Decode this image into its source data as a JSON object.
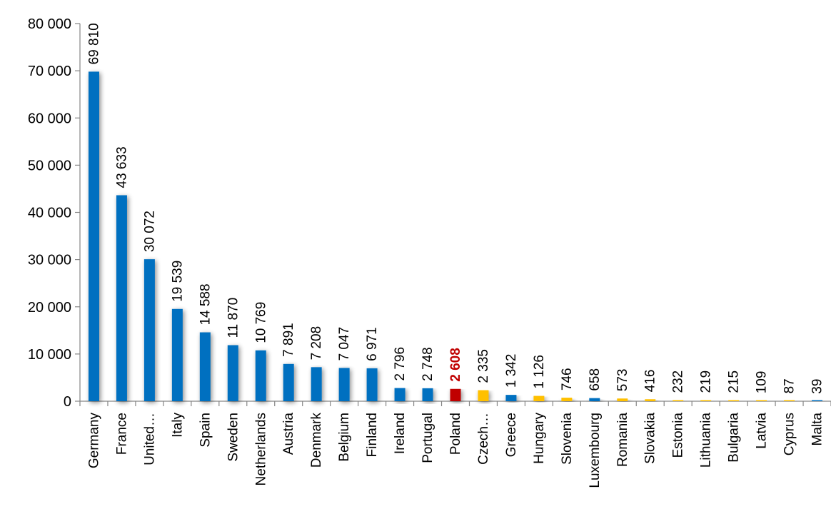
{
  "chart_data": {
    "type": "bar",
    "title": "",
    "xlabel": "",
    "ylabel": "",
    "ylim": [
      0,
      80000
    ],
    "yticks": [
      0,
      10000,
      20000,
      30000,
      40000,
      50000,
      60000,
      70000,
      80000
    ],
    "ytick_labels": [
      "0",
      "10 000",
      "20 000",
      "30 000",
      "40 000",
      "50 000",
      "60 000",
      "70 000",
      "80 000"
    ],
    "grid": false,
    "categories": [
      "Germany",
      "France",
      "United…",
      "Italy",
      "Spain",
      "Sweden",
      "Netherlands",
      "Austria",
      "Denmark",
      "Belgium",
      "Finland",
      "Ireland",
      "Portugal",
      "Poland",
      "Czech…",
      "Greece",
      "Hungary",
      "Slovenia",
      "Luxembourg",
      "Romania",
      "Slovakia",
      "Estonia",
      "Lithuania",
      "Bulgaria",
      "Latvia",
      "Cyprus",
      "Malta"
    ],
    "values": [
      69810,
      43633,
      30072,
      19539,
      14588,
      11870,
      10769,
      7891,
      7208,
      7047,
      6971,
      2796,
      2748,
      2608,
      2335,
      1342,
      1126,
      746,
      658,
      573,
      416,
      232,
      219,
      215,
      109,
      87,
      39
    ],
    "value_labels": [
      "69 810",
      "43 633",
      "30 072",
      "19 539",
      "14 588",
      "11 870",
      "10 769",
      "7 891",
      "7 208",
      "7 047",
      "6 971",
      "2 796",
      "2 748",
      "2 608",
      "2 335",
      "1 342",
      "1 126",
      "746",
      "658",
      "573",
      "416",
      "232",
      "219",
      "215",
      "109",
      "87",
      "39"
    ],
    "bar_colors": [
      "#0070c0",
      "#0070c0",
      "#0070c0",
      "#0070c0",
      "#0070c0",
      "#0070c0",
      "#0070c0",
      "#0070c0",
      "#0070c0",
      "#0070c0",
      "#0070c0",
      "#0070c0",
      "#0070c0",
      "#c00000",
      "#ffc000",
      "#0070c0",
      "#ffc000",
      "#ffc000",
      "#0070c0",
      "#ffc000",
      "#ffc000",
      "#ffc000",
      "#ffc000",
      "#ffc000",
      "#ffc000",
      "#ffc000",
      "#0070c0"
    ],
    "highlight_category": "Poland",
    "highlight_label_color": "#c00000"
  }
}
